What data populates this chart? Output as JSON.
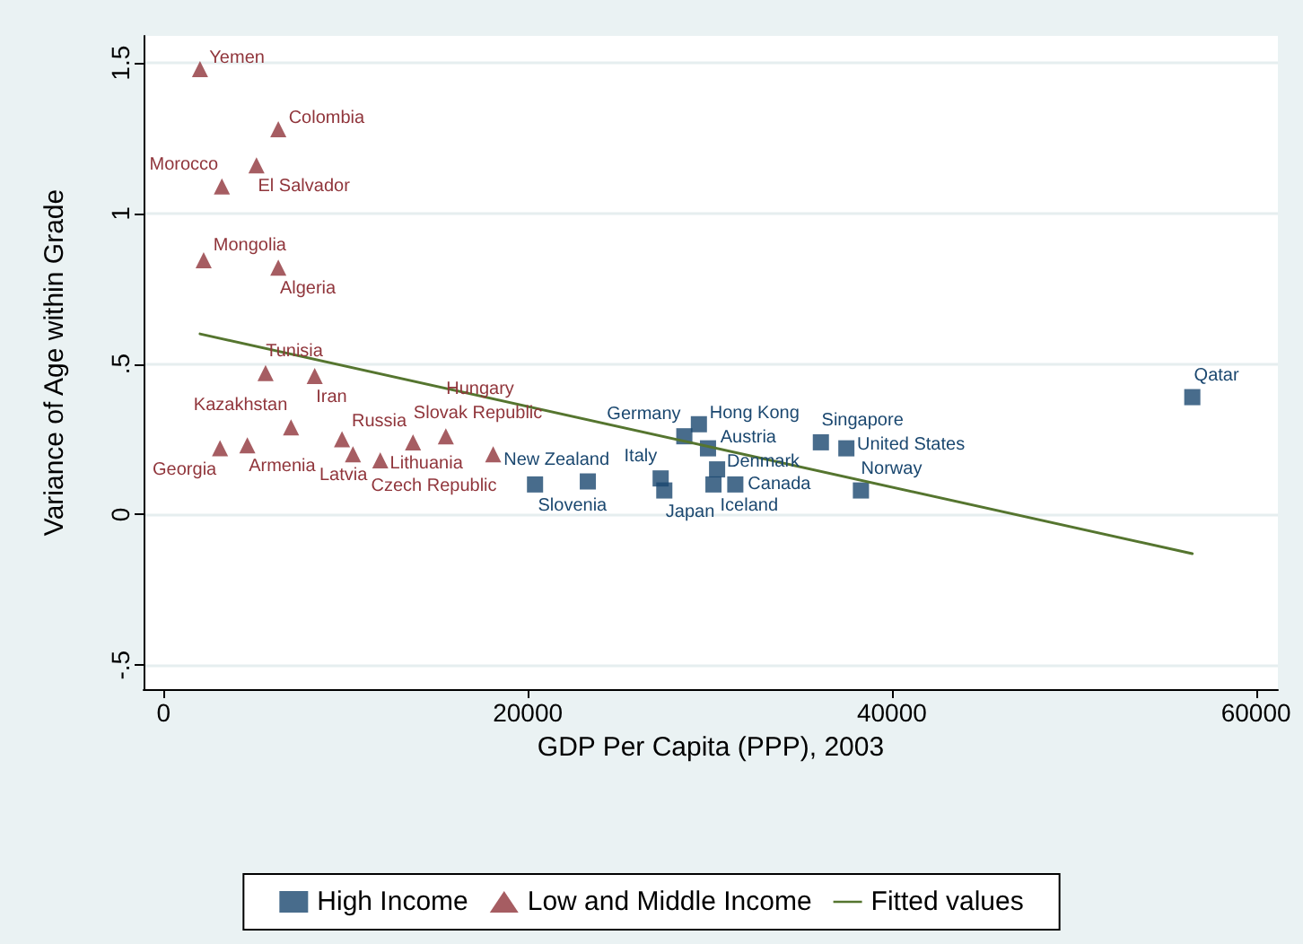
{
  "chart_data": {
    "type": "scatter",
    "xlabel": "GDP Per Capita (PPP), 2003",
    "ylabel": "Variance of Age within Grade",
    "xlim": [
      -1100,
      61200
    ],
    "xticks": [
      0,
      20000,
      40000,
      60000
    ],
    "ylim": [
      -0.58,
      1.59
    ],
    "yticks": [
      {
        "value": -0.5,
        "label": "-.5"
      },
      {
        "value": 0,
        "label": "0"
      },
      {
        "value": 0.5,
        "label": ".5"
      },
      {
        "value": 1,
        "label": "1"
      },
      {
        "value": 1.5,
        "label": "1.5"
      }
    ],
    "grid": "y",
    "legend": "bottom",
    "series": [
      {
        "name": "High Income",
        "color": "#1a476f",
        "marker": "square",
        "x": [
          20400,
          23300,
          27300,
          27500,
          29400,
          28600,
          29900,
          30400,
          30200,
          31400,
          36100,
          37500,
          38300,
          56500
        ],
        "values": [
          0.1,
          0.11,
          0.12,
          0.08,
          0.3,
          0.26,
          0.22,
          0.15,
          0.1,
          0.1,
          0.24,
          0.22,
          0.08,
          0.39
        ]
      },
      {
        "name": "Low and Middle Income",
        "color": "#90353b",
        "marker": "triangle",
        "x": [
          2000,
          6300,
          5100,
          3200,
          2200,
          6300,
          5600,
          8300,
          7000,
          4600,
          3100,
          9800,
          10400,
          11900,
          13700,
          15500,
          18100
        ],
        "values": [
          1.48,
          1.28,
          1.16,
          1.09,
          0.845,
          0.82,
          0.47,
          0.46,
          0.29,
          0.23,
          0.22,
          0.25,
          0.2,
          0.18,
          0.24,
          0.26,
          0.2
        ]
      },
      {
        "name": "Fitted values",
        "type": "line",
        "color": "#55752f",
        "marker": "none",
        "line_style": "solid",
        "x": [
          2000,
          56500
        ],
        "values": [
          0.6,
          -0.13
        ]
      }
    ],
    "annotations": [
      {
        "text": "Slovenia",
        "x": 20400,
        "y": 0.1
      },
      {
        "text": "New Zealand",
        "x": 23300,
        "y": 0.11
      },
      {
        "text": "Italy",
        "x": 27300,
        "y": 0.12
      },
      {
        "text": "Japan",
        "x": 27500,
        "y": 0.08
      },
      {
        "text": "Hong Kong",
        "x": 29400,
        "y": 0.3
      },
      {
        "text": "Germany",
        "x": 28600,
        "y": 0.26
      },
      {
        "text": "Austria",
        "x": 29900,
        "y": 0.22
      },
      {
        "text": "Denmark",
        "x": 30400,
        "y": 0.15
      },
      {
        "text": "Iceland",
        "x": 30200,
        "y": 0.1
      },
      {
        "text": "Canada",
        "x": 31400,
        "y": 0.1
      },
      {
        "text": "Singapore",
        "x": 36100,
        "y": 0.24
      },
      {
        "text": "United States",
        "x": 37500,
        "y": 0.22
      },
      {
        "text": "Norway",
        "x": 38300,
        "y": 0.08
      },
      {
        "text": "Qatar",
        "x": 56500,
        "y": 0.39
      },
      {
        "text": "Yemen",
        "x": 2000,
        "y": 1.48
      },
      {
        "text": "Colombia",
        "x": 6300,
        "y": 1.28
      },
      {
        "text": "El Salvador",
        "x": 5100,
        "y": 1.16
      },
      {
        "text": "Morocco",
        "x": 3200,
        "y": 1.09
      },
      {
        "text": "Mongolia",
        "x": 2200,
        "y": 0.845
      },
      {
        "text": "Algeria",
        "x": 6300,
        "y": 0.82
      },
      {
        "text": "Tunisia",
        "x": 5600,
        "y": 0.47
      },
      {
        "text": "Iran",
        "x": 8300,
        "y": 0.46
      },
      {
        "text": "Kazakhstan",
        "x": 7000,
        "y": 0.29
      },
      {
        "text": "Armenia",
        "x": 4600,
        "y": 0.23
      },
      {
        "text": "Georgia",
        "x": 3100,
        "y": 0.22
      },
      {
        "text": "Russia",
        "x": 9800,
        "y": 0.25
      },
      {
        "text": "Latvia",
        "x": 10400,
        "y": 0.2
      },
      {
        "text": "Lithuania",
        "x": 11900,
        "y": 0.18
      },
      {
        "text": "Slovak Republic",
        "x": 13700,
        "y": 0.24
      },
      {
        "text": "Hungary",
        "x": 15500,
        "y": 0.26
      },
      {
        "text": "Czech Republic",
        "x": 18100,
        "y": 0.2
      }
    ]
  }
}
